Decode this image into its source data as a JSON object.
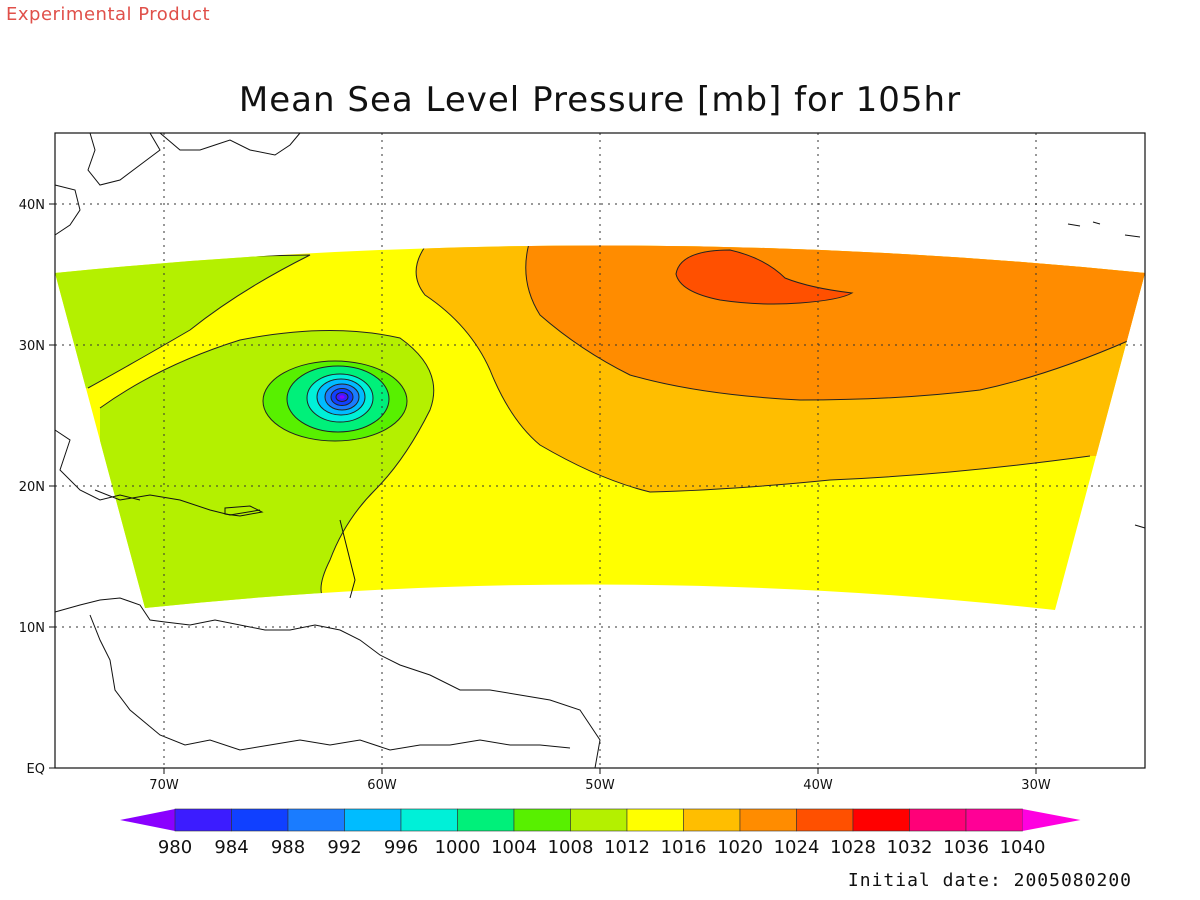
{
  "header": {
    "experimental_label": "Experimental Product",
    "title": "Mean Sea Level Pressure [mb] for 105hr"
  },
  "footer": {
    "initial_date": "Initial date: 2005080200"
  },
  "map": {
    "lon_ticks": [
      "70W",
      "60W",
      "50W",
      "40W",
      "30W"
    ],
    "lat_ticks": [
      "EQ",
      "10N",
      "20N",
      "30N",
      "40N"
    ],
    "lon_range": [
      -75,
      -25
    ],
    "lat_range": [
      0,
      45
    ],
    "grid": "dotted"
  },
  "colorbar": {
    "labels": [
      "980",
      "984",
      "988",
      "992",
      "996",
      "1000",
      "1004",
      "1008",
      "1012",
      "1016",
      "1020",
      "1024",
      "1028",
      "1032",
      "1036",
      "1040"
    ],
    "colors": [
      "#8a00ff",
      "#3c1cff",
      "#1040ff",
      "#1a7cff",
      "#00bcff",
      "#00f0d8",
      "#00f07a",
      "#58f000",
      "#b4f000",
      "#ffff00",
      "#ffbe00",
      "#ff8c00",
      "#ff5000",
      "#ff0000",
      "#ff0078",
      "#ff0096",
      "#ff00e0"
    ]
  },
  "chart_data": {
    "type": "heatmap",
    "title": "Mean Sea Level Pressure [mb] for 105hr",
    "units": "mb",
    "levels": [
      980,
      984,
      988,
      992,
      996,
      1000,
      1004,
      1008,
      1012,
      1016,
      1020,
      1024,
      1028,
      1032,
      1036,
      1040
    ],
    "features": [
      {
        "kind": "low",
        "center_lon": -62,
        "center_lat": 26.3,
        "min_level": 980
      },
      {
        "kind": "high",
        "center_lon": -43,
        "center_lat": 34,
        "max_level": 1028
      }
    ]
  }
}
